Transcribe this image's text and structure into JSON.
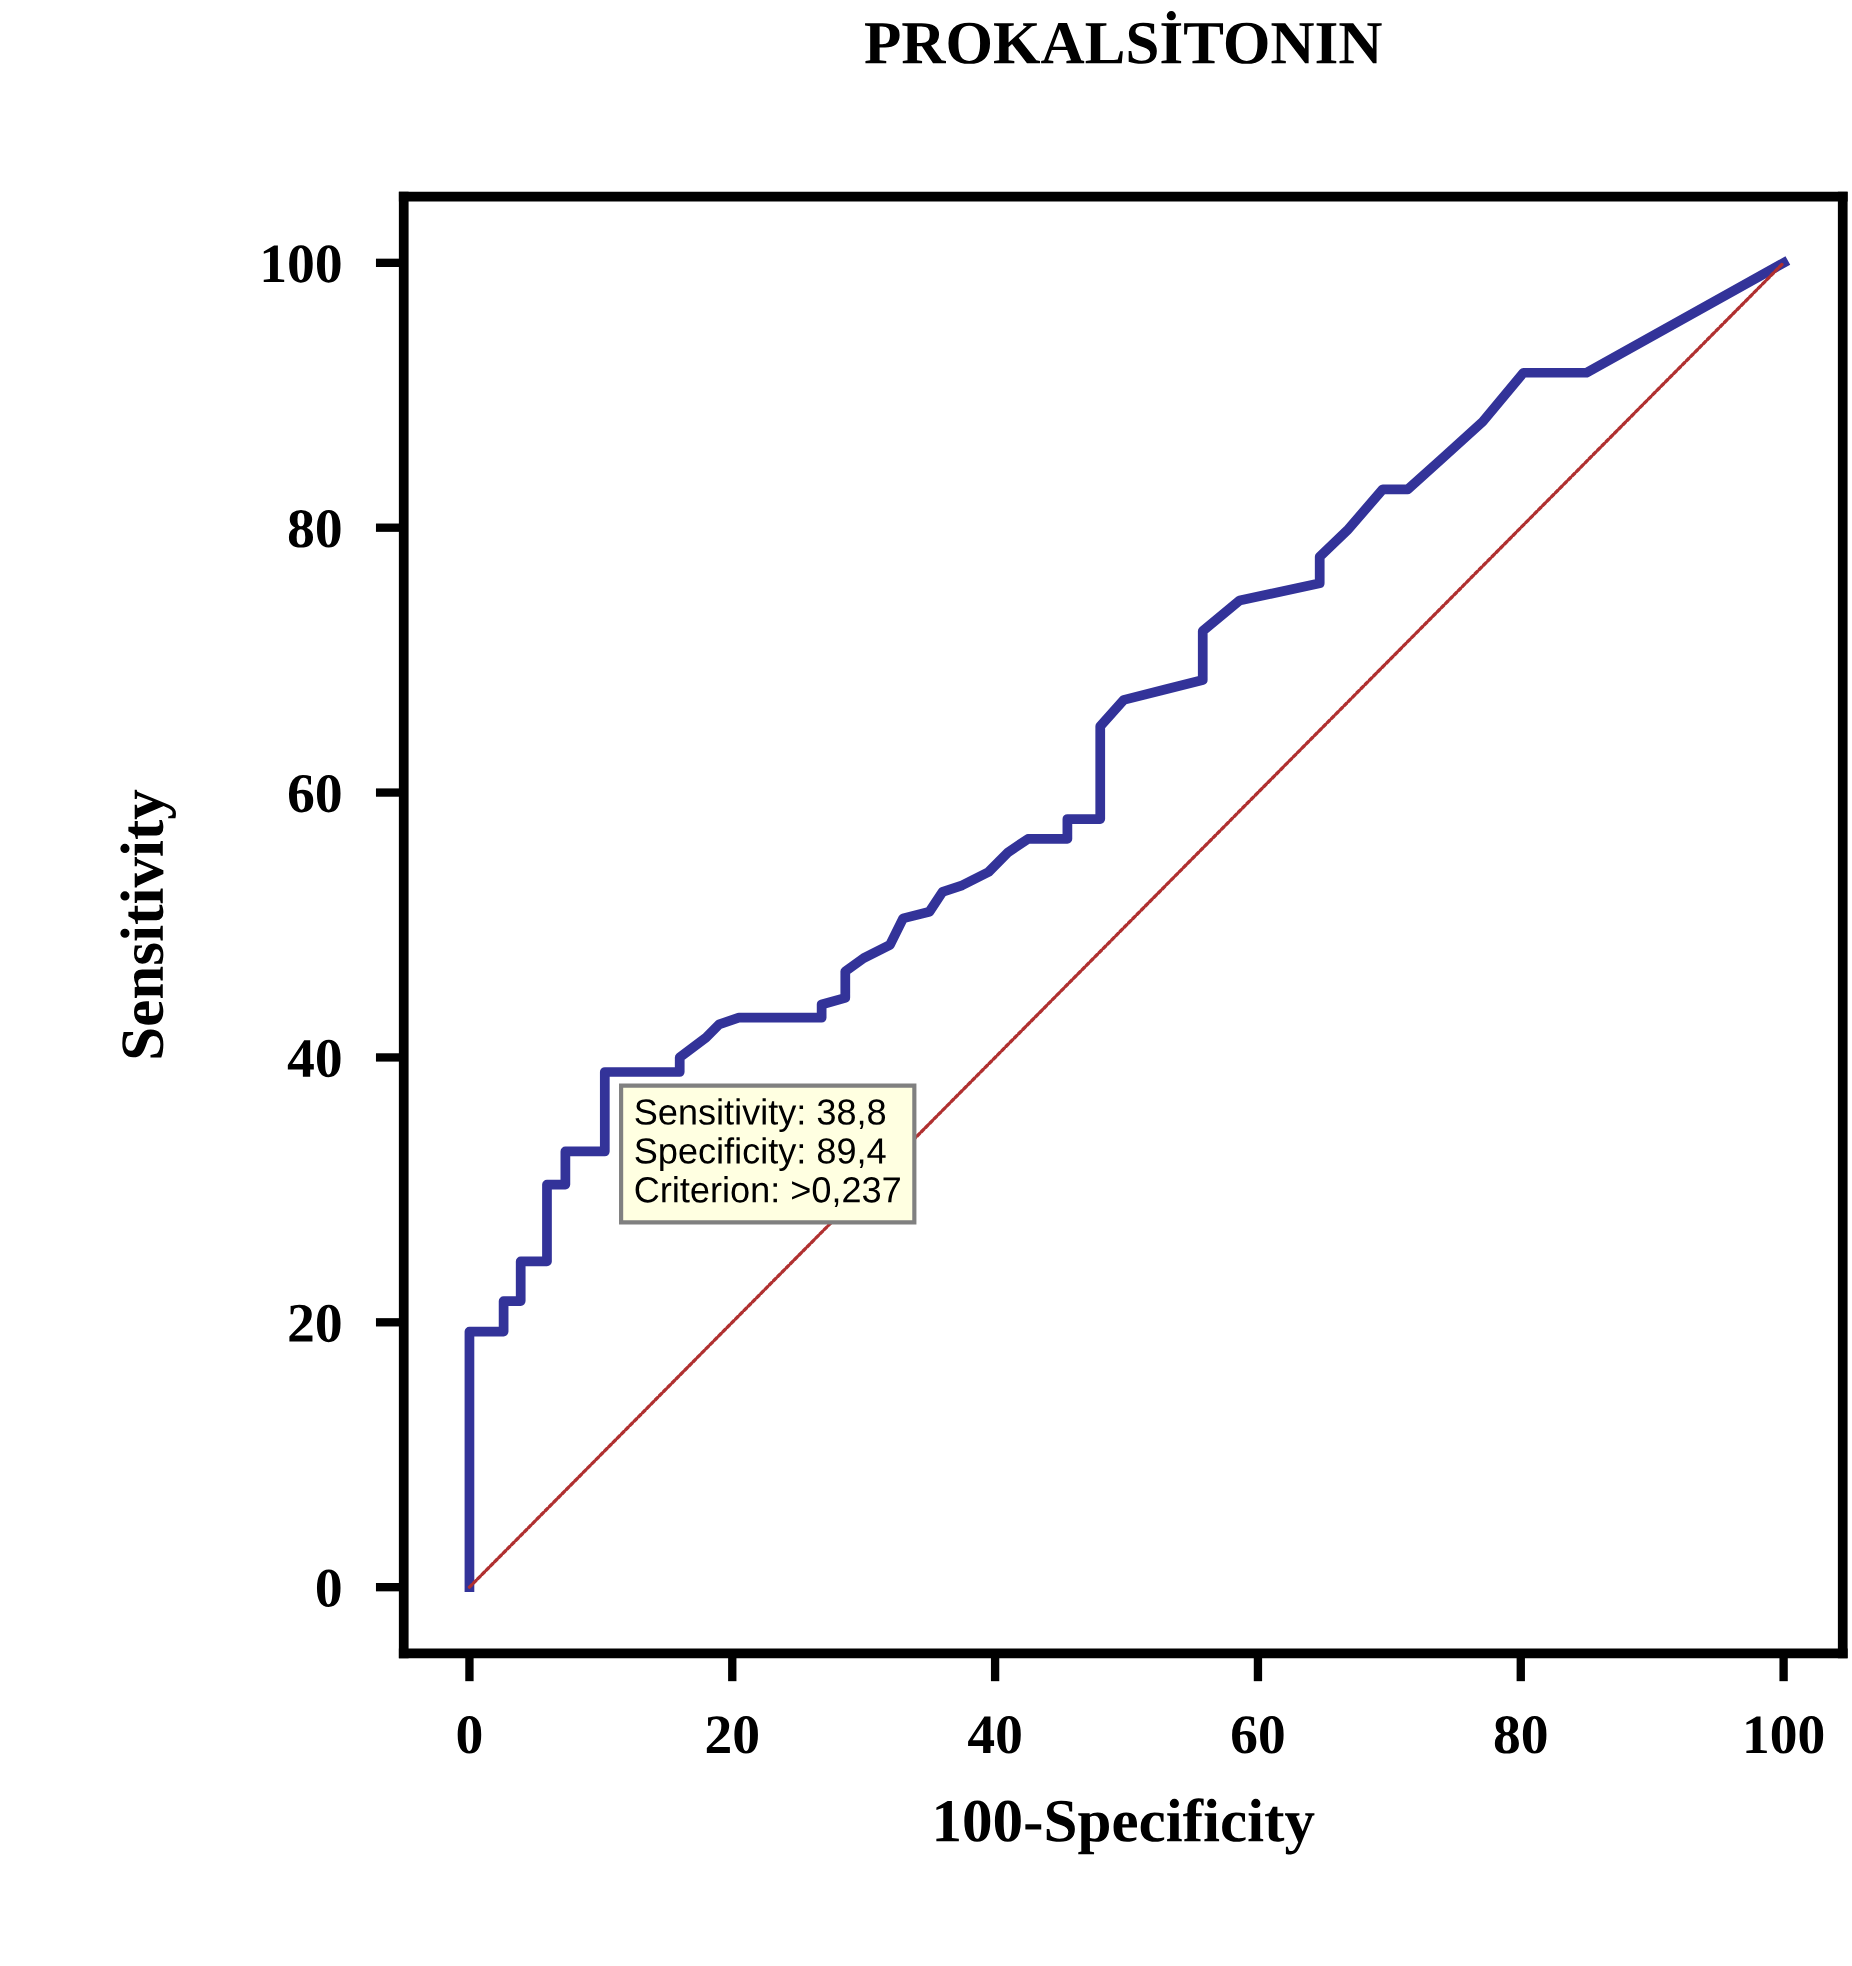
{
  "chart_data": {
    "type": "line",
    "title": "PROKALSİTONIN",
    "xlabel": "100-Specificity",
    "ylabel": "Sensitivity",
    "xlim": [
      -5,
      104.5
    ],
    "ylim": [
      -5,
      105
    ],
    "xticks": [
      0,
      20,
      40,
      60,
      80,
      100
    ],
    "yticks": [
      0,
      20,
      40,
      60,
      80,
      100
    ],
    "grid": false,
    "legend": false,
    "series": [
      {
        "color": "#333399",
        "line_style": "solid",
        "x": [
          0,
          0,
          2.6,
          2.6,
          3.9,
          3.9,
          5.9,
          5.9,
          7.3,
          7.3,
          10.3,
          10.3,
          16,
          16,
          18,
          19,
          20.5,
          26.8,
          26.8,
          28.6,
          28.6,
          30,
          32,
          33,
          35,
          36,
          37.5,
          39.5,
          41,
          42.5,
          45.5,
          45.5,
          48,
          48,
          49.8,
          53,
          55.8,
          55.8,
          58.6,
          64.7,
          64.7,
          66.8,
          69.5,
          71.4,
          74.1,
          77.1,
          80.2,
          85,
          100
        ],
        "values": [
          0,
          19.3,
          19.3,
          21.6,
          21.6,
          24.6,
          24.6,
          30.4,
          30.4,
          32.9,
          32.9,
          38.9,
          38.9,
          40,
          41.5,
          42.5,
          43,
          43,
          44,
          44.5,
          46.5,
          47.5,
          48.5,
          50.5,
          51,
          52.5,
          53,
          54,
          55.5,
          56.5,
          56.5,
          58,
          58,
          65,
          67,
          67.8,
          68.5,
          72.2,
          74.5,
          75.8,
          77.8,
          79.8,
          82.9,
          82.9,
          85.3,
          88,
          91.7,
          91.7,
          100
        ]
      },
      {
        "color": "#b03030",
        "line_style": "dotted",
        "x": [
          0,
          100
        ],
        "values": [
          0,
          100
        ]
      }
    ],
    "annotations": [
      {
        "text": "Sensitivity: 38,8\nSpecificity: 89,4\nCriterion: >0,237",
        "x": 10.6,
        "y": 38.8
      }
    ]
  }
}
